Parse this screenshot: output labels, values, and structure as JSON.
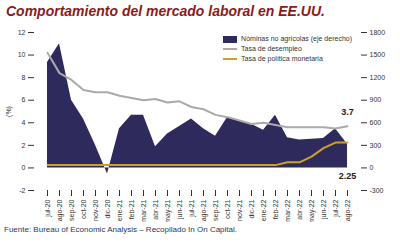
{
  "chart_data": {
    "type": "combo",
    "title": "Comportamiento del mercado laboral en EE.UU.",
    "caption": "Fuente: Bureau of Economic Analysis – Recopilado In On Capital.",
    "y_label": "(%)",
    "categories": [
      "jul-20",
      "ago-20",
      "sep-20",
      "oct-20",
      "nov-20",
      "dic-20",
      "ene-21",
      "feb-21",
      "mar-21",
      "abr-21",
      "may-21",
      "jun-21",
      "jul-21",
      "ago-21",
      "sep-21",
      "oct-21",
      "nov-21",
      "dic-21",
      "ene-22",
      "feb-22",
      "mar-22",
      "abr-22",
      "may-22",
      "jun-22",
      "jul-22",
      "ago-22"
    ],
    "series": [
      {
        "name": "Nóminas no agrícolas (eje derecho)",
        "type": "area",
        "axis": "y2",
        "color": "#2e2a5c",
        "values": [
          1400,
          1650,
          900,
          650,
          300,
          -80,
          520,
          700,
          700,
          280,
          450,
          550,
          650,
          520,
          420,
          670,
          620,
          580,
          500,
          700,
          400,
          370,
          380,
          390,
          520,
          315
        ]
      },
      {
        "name": "Tasa de desempleo",
        "type": "line",
        "axis": "y",
        "color": "#aaaaaa",
        "values": [
          10.2,
          8.4,
          7.8,
          6.9,
          6.7,
          6.7,
          6.4,
          6.2,
          6.0,
          6.1,
          5.8,
          5.9,
          5.4,
          5.2,
          4.7,
          4.5,
          4.2,
          3.9,
          4.0,
          3.8,
          3.6,
          3.6,
          3.6,
          3.6,
          3.5,
          3.7
        ]
      },
      {
        "name": "Tasa de política monetaria",
        "type": "line",
        "axis": "y",
        "color": "#c9a227",
        "values": [
          0.25,
          0.25,
          0.25,
          0.25,
          0.25,
          0.25,
          0.25,
          0.25,
          0.25,
          0.25,
          0.25,
          0.25,
          0.25,
          0.25,
          0.25,
          0.25,
          0.25,
          0.25,
          0.25,
          0.25,
          0.5,
          0.5,
          1.0,
          1.75,
          2.25,
          2.25
        ]
      }
    ],
    "annotations": [
      {
        "text": "3.7",
        "x": "ago-22",
        "y": 3.7
      },
      {
        "text": "2.25",
        "x": "ago-22",
        "y": 2.25
      }
    ],
    "ylim": [
      -2,
      12
    ],
    "yticks": [
      -2,
      0,
      2,
      4,
      6,
      8,
      10,
      12
    ],
    "y2lim": [
      -300,
      1800
    ],
    "y2ticks": [
      -300,
      0,
      300,
      600,
      900,
      1200,
      1500,
      1800
    ],
    "legend": "top-right",
    "grid": false
  }
}
